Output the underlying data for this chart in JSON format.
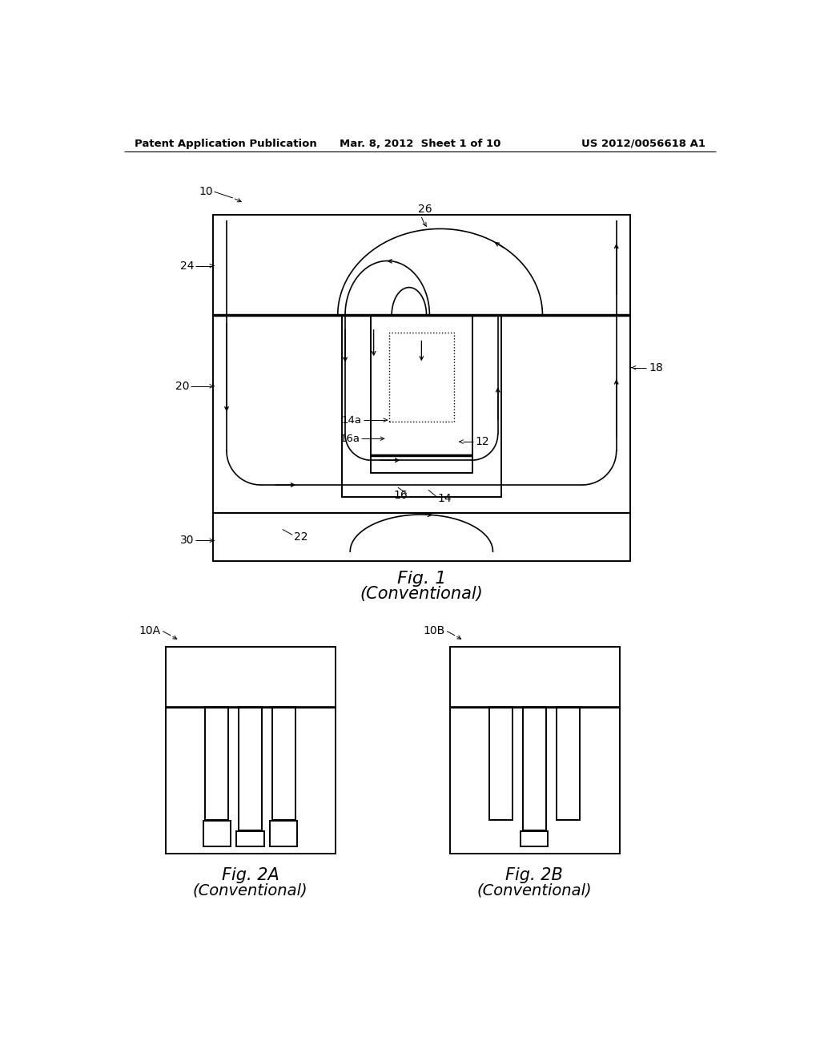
{
  "bg_color": "#ffffff",
  "header_left": "Patent Application Publication",
  "header_mid": "Mar. 8, 2012  Sheet 1 of 10",
  "header_right": "US 2012/0056618 A1",
  "fig1_title": "Fig. 1",
  "fig1_sub": "(Conventional)",
  "fig2a_title": "Fig. 2A",
  "fig2a_sub": "(Conventional)",
  "fig2b_title": "Fig. 2B",
  "fig2b_sub": "(Conventional)",
  "lc": "#000000",
  "tc": "#000000"
}
